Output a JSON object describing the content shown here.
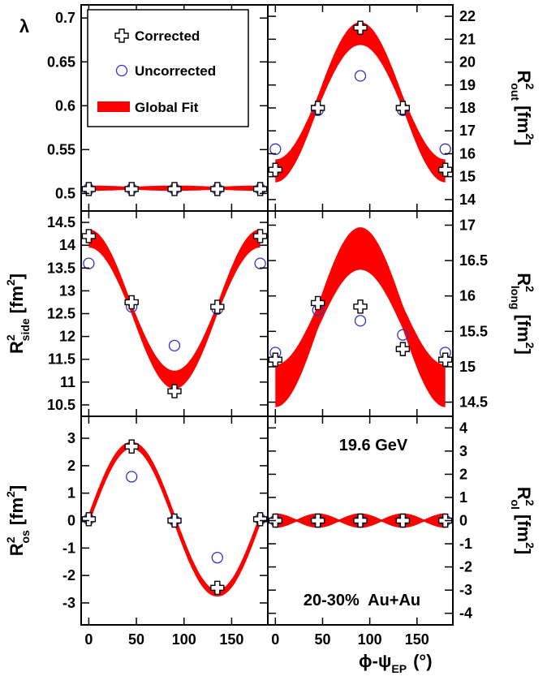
{
  "chart_data": [
    {
      "type": "line",
      "panel": "lambda",
      "ylabel": "λ",
      "ylabel_side": "left",
      "xlim": [
        -8,
        188
      ],
      "ylim": [
        0.48,
        0.715
      ],
      "yticks": [
        0.5,
        0.55,
        0.6,
        0.65,
        0.7
      ],
      "ytick_labels": [
        "0.5",
        "0.55",
        "0.6",
        "0.65",
        "0.7"
      ],
      "legend": [
        "Corrected",
        "Uncorrected",
        "Global Fit"
      ],
      "legend_position": "top-left",
      "corrected": {
        "x": [
          0,
          45,
          90,
          135,
          180
        ],
        "y": [
          0.505,
          0.505,
          0.505,
          0.505,
          0.505
        ]
      },
      "uncorrected": {
        "x": [
          0,
          45,
          90,
          135,
          180
        ],
        "y": [
          0.505,
          0.505,
          0.505,
          0.505,
          0.505
        ]
      },
      "fit": {
        "a0": 0.506,
        "a2": 0.0,
        "phase": "cos",
        "width": 0.003
      }
    },
    {
      "type": "line",
      "panel": "R2out",
      "ylabel": "R",
      "ylabel_sup": "2",
      "ylabel_sub": "out",
      "ylabel_unit": "[fm",
      "ylabel_unit_sup": "2",
      "ylabel_unit_end": "]",
      "ylabel_side": "right",
      "xlim": [
        -8,
        188
      ],
      "ylim": [
        13.5,
        22.5
      ],
      "yticks": [
        14,
        15,
        16,
        17,
        18,
        19,
        20,
        21,
        22
      ],
      "ytick_labels": [
        "14",
        "15",
        "16",
        "17",
        "18",
        "19",
        "20",
        "21",
        "22"
      ],
      "corrected": {
        "x": [
          0,
          45,
          90,
          135,
          180
        ],
        "y": [
          15.3,
          18.0,
          21.5,
          18.0,
          15.3
        ]
      },
      "uncorrected": {
        "x": [
          0,
          45,
          90,
          135,
          180
        ],
        "y": [
          16.2,
          17.9,
          19.4,
          17.9,
          16.2
        ]
      },
      "fit": {
        "a0": 18.25,
        "a2": -3.0,
        "phase": "cos",
        "width": 0.5
      }
    },
    {
      "type": "line",
      "panel": "R2side",
      "ylabel": "R",
      "ylabel_sup": "2",
      "ylabel_sub": "side",
      "ylabel_unit": "[fm",
      "ylabel_unit_sup": "2",
      "ylabel_unit_end": "]",
      "ylabel_side": "left",
      "xlim": [
        -8,
        188
      ],
      "ylim": [
        10.25,
        14.75
      ],
      "yticks": [
        10.5,
        11,
        11.5,
        12,
        12.5,
        13,
        13.5,
        14,
        14.5
      ],
      "ytick_labels": [
        "10.5",
        "11",
        "11.5",
        "12",
        "12.5",
        "13",
        "13.5",
        "14",
        "14.5"
      ],
      "corrected": {
        "x": [
          0,
          45,
          90,
          135,
          180
        ],
        "y": [
          14.2,
          12.75,
          10.8,
          12.65,
          14.2
        ]
      },
      "uncorrected": {
        "x": [
          0,
          45,
          90,
          135,
          180
        ],
        "y": [
          13.6,
          12.65,
          11.8,
          12.6,
          13.6
        ]
      },
      "fit": {
        "a0": 12.6,
        "a2": 1.55,
        "phase": "cos",
        "width": 0.2
      }
    },
    {
      "type": "line",
      "panel": "R2long",
      "ylabel": "R",
      "ylabel_sup": "2",
      "ylabel_sub": "long",
      "ylabel_unit": "[fm",
      "ylabel_unit_sup": "2",
      "ylabel_unit_end": "]",
      "ylabel_side": "right",
      "xlim": [
        -8,
        188
      ],
      "ylim": [
        14.3,
        17.2
      ],
      "yticks": [
        14.5,
        15,
        15.5,
        16,
        16.5,
        17
      ],
      "ytick_labels": [
        "14.5",
        "15",
        "15.5",
        "16",
        "16.5",
        "17"
      ],
      "corrected": {
        "x": [
          0,
          45,
          90,
          135,
          180
        ],
        "y": [
          15.1,
          15.9,
          15.85,
          15.25,
          15.1
        ]
      },
      "uncorrected": {
        "x": [
          0,
          45,
          90,
          135,
          180
        ],
        "y": [
          15.2,
          15.8,
          15.65,
          15.45,
          15.2
        ]
      },
      "fit": {
        "a0": 15.7,
        "a2": -0.97,
        "phase": "cos",
        "width": 0.3
      }
    },
    {
      "type": "line",
      "panel": "R2os",
      "ylabel": "R",
      "ylabel_sup": "2",
      "ylabel_sub": "os",
      "ylabel_unit": "[fm",
      "ylabel_unit_sup": "2",
      "ylabel_unit_end": "]",
      "ylabel_side": "left",
      "xlim": [
        -8,
        188
      ],
      "ylim": [
        -3.8,
        3.8
      ],
      "yticks": [
        -3,
        -2,
        -1,
        0,
        1,
        2,
        3
      ],
      "ytick_labels": [
        "-3",
        "-2",
        "-1",
        "0",
        "1",
        "2",
        "3"
      ],
      "xticks": [
        0,
        50,
        100,
        150
      ],
      "xtick_labels": [
        "0",
        "50",
        "100",
        "150"
      ],
      "corrected": {
        "x": [
          0,
          45,
          90,
          135,
          180
        ],
        "y": [
          0.05,
          2.7,
          0.0,
          -2.45,
          0.05
        ]
      },
      "uncorrected": {
        "x": [
          0,
          45,
          90,
          135,
          180
        ],
        "y": [
          0.05,
          1.6,
          0.0,
          -1.35,
          0.05
        ]
      },
      "fit": {
        "a0": 0.05,
        "a2": 2.7,
        "phase": "sin",
        "width": 0.2
      }
    },
    {
      "type": "line",
      "panel": "R2ol",
      "ylabel": "R",
      "ylabel_sup": "2",
      "ylabel_sub": "ol",
      "ylabel_unit": "[fm",
      "ylabel_unit_sup": "2",
      "ylabel_unit_end": "]",
      "ylabel_side": "right",
      "xlim": [
        -8,
        188
      ],
      "ylim": [
        -4.5,
        4.5
      ],
      "yticks": [
        -4,
        -3,
        -2,
        -1,
        0,
        1,
        2,
        3,
        4
      ],
      "ytick_labels": [
        "-4",
        "-3",
        "-2",
        "-1",
        "0",
        "1",
        "2",
        "3",
        "4"
      ],
      "xticks": [
        0,
        50,
        100,
        150
      ],
      "xtick_labels": [
        "0",
        "50",
        "100",
        "150"
      ],
      "xlabel": "ϕ-ψ",
      "xlabel_sub": "EP",
      "xlabel_unit": "(°)",
      "annotations": [
        "19.6 GeV",
        "20-30%  Au+Au"
      ],
      "corrected": {
        "x": [
          0,
          45,
          90,
          135,
          180
        ],
        "y": [
          0.0,
          0.0,
          0.0,
          0.0,
          0.0
        ]
      },
      "uncorrected": {
        "x": [
          0,
          45,
          90,
          135,
          180
        ],
        "y": [
          0.0,
          0.0,
          0.0,
          0.0,
          0.0
        ]
      },
      "fit": {
        "a0": 0.0,
        "a2": 0.0,
        "phase": "cos",
        "width": 0.3,
        "band_wiggle": true
      }
    }
  ],
  "style": {
    "fit_color": "#ff0000",
    "uncorrected_color": "#3333cc",
    "corrected_color": "#000000",
    "frame_color": "#000000"
  }
}
